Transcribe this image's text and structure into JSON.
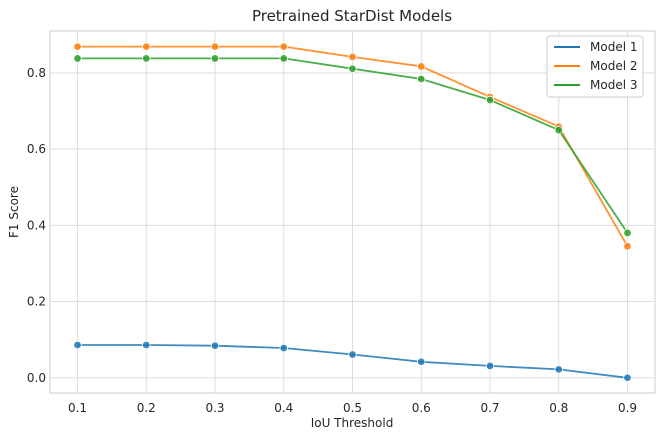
{
  "chart_data": {
    "type": "line",
    "title": "Pretrained StarDist Models",
    "xlabel": "IoU Threshold",
    "ylabel": "F1 Score",
    "x": [
      0.1,
      0.2,
      0.3,
      0.4,
      0.5,
      0.6,
      0.7,
      0.8,
      0.9
    ],
    "x_tick_labels": [
      "0.1",
      "0.2",
      "0.3",
      "0.4",
      "0.5",
      "0.6",
      "0.7",
      "0.8",
      "0.9"
    ],
    "xlim": [
      0.06,
      0.94
    ],
    "ylim": [
      -0.04,
      0.91
    ],
    "y_ticks": [
      0.0,
      0.2,
      0.4,
      0.6,
      0.8
    ],
    "y_tick_labels": [
      "0.0",
      "0.2",
      "0.4",
      "0.6",
      "0.8"
    ],
    "grid": true,
    "legend_position": "top-right",
    "series": [
      {
        "name": "Model 1",
        "color": "#1f77b4",
        "values": [
          0.086,
          0.086,
          0.084,
          0.078,
          0.061,
          0.042,
          0.031,
          0.022,
          0.0
        ]
      },
      {
        "name": "Model 2",
        "color": "#ff7f0e",
        "values": [
          0.869,
          0.869,
          0.869,
          0.869,
          0.842,
          0.817,
          0.737,
          0.659,
          0.345
        ]
      },
      {
        "name": "Model 3",
        "color": "#2ca02c",
        "values": [
          0.838,
          0.838,
          0.838,
          0.838,
          0.811,
          0.784,
          0.729,
          0.65,
          0.38
        ]
      }
    ]
  }
}
